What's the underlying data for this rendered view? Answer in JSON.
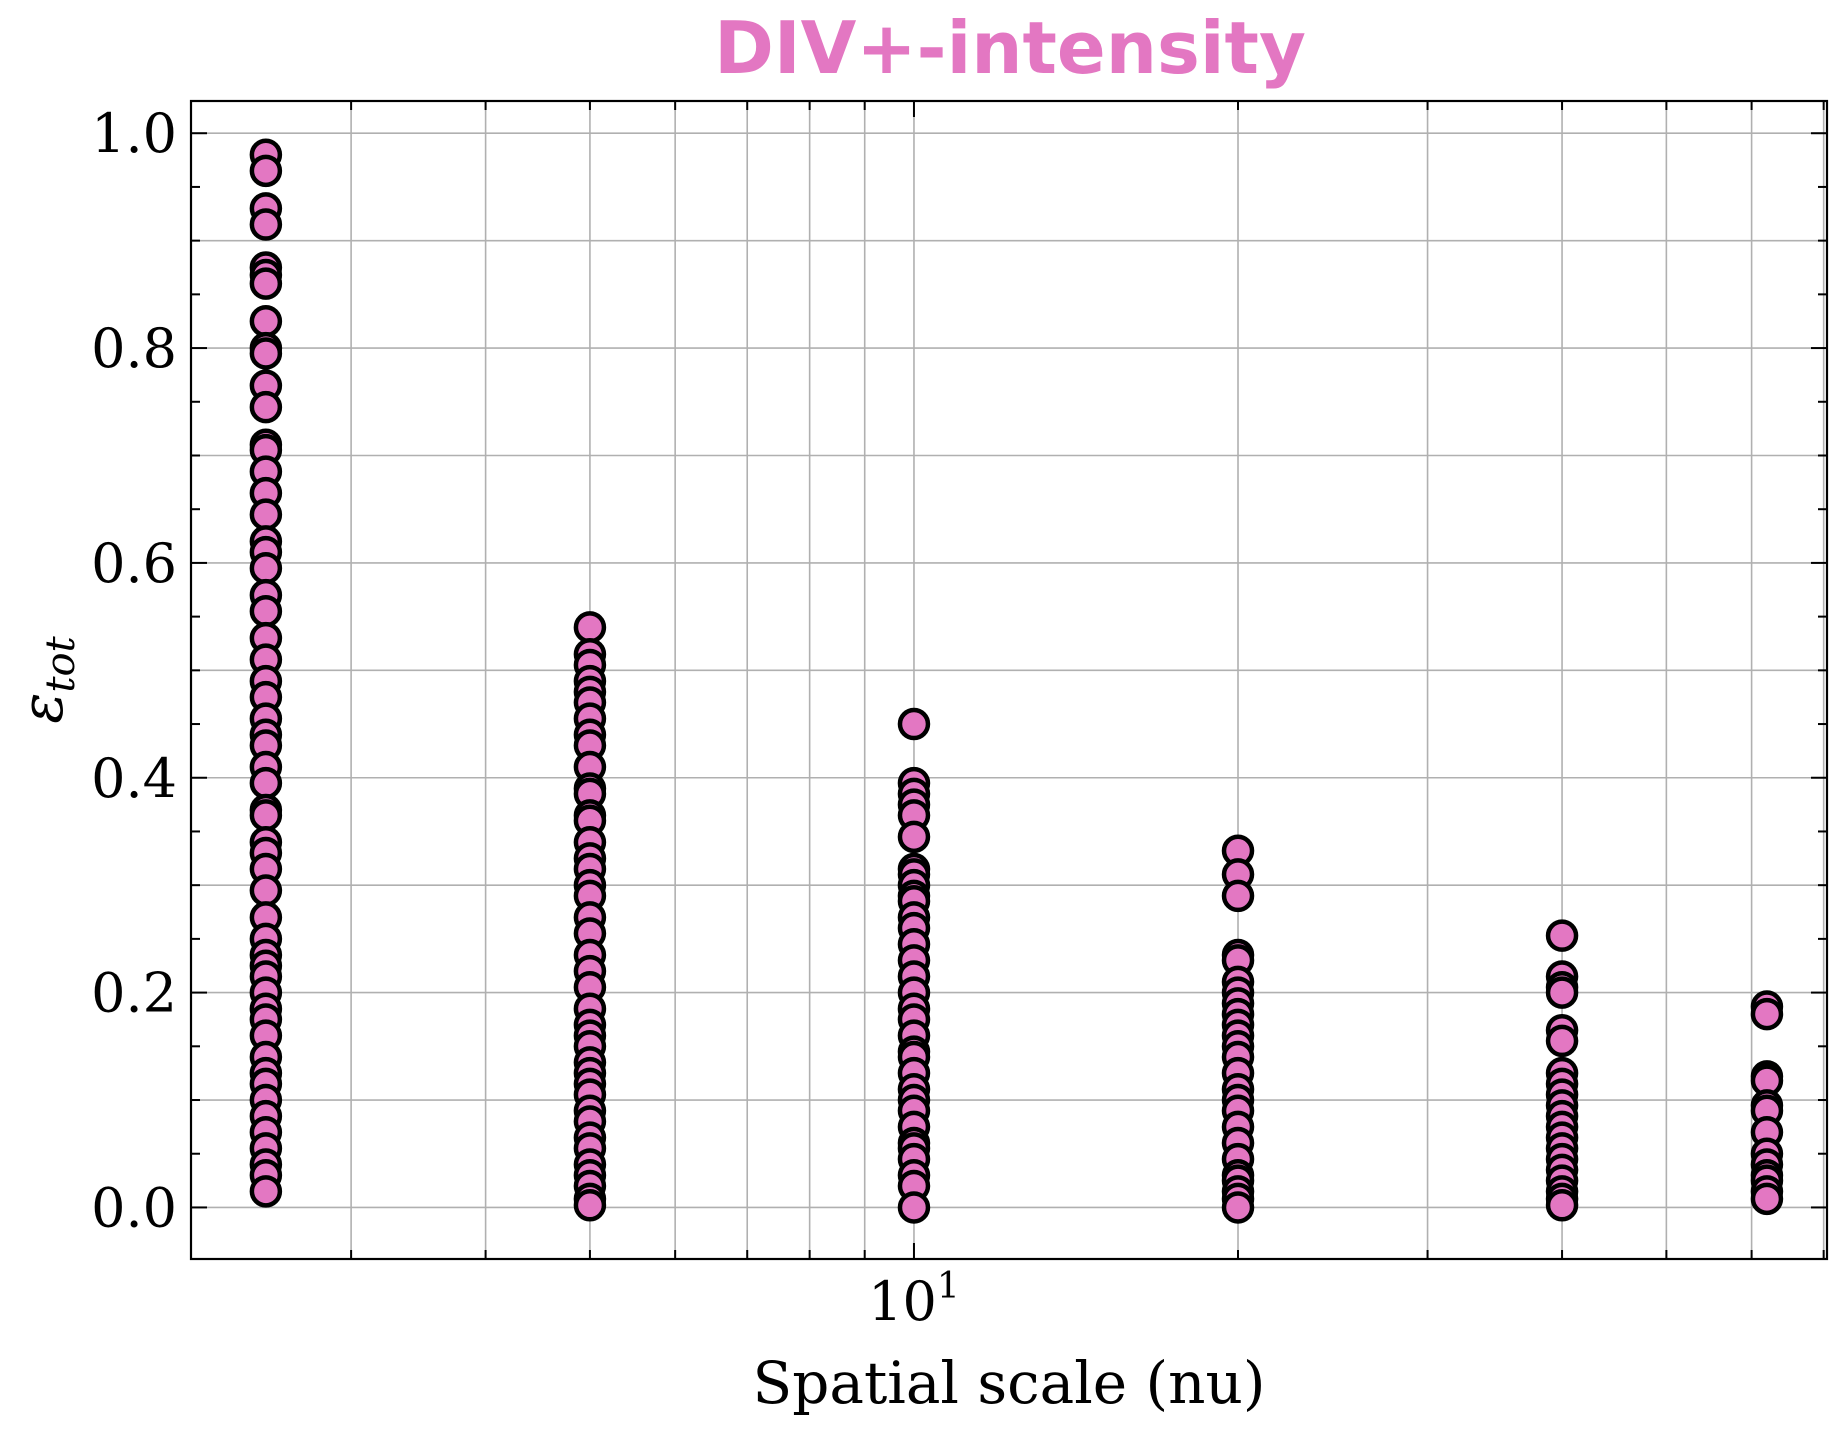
{
  "chart_data": {
    "type": "scatter",
    "title": "DIV+-intensity",
    "title_color": "#e377c2",
    "xlabel": "Spatial scale (nu)",
    "ylabel": "ε",
    "ylabel_sub": "tot",
    "x_scale": "log",
    "xlim": [
      2.13,
      70.5
    ],
    "ylim": [
      -0.048,
      1.03
    ],
    "x_major_ticks": [
      {
        "value": 10,
        "base": "10",
        "exp": "1"
      }
    ],
    "y_ticks": [
      {
        "value": 0.0,
        "label": "0.0"
      },
      {
        "value": 0.2,
        "label": "0.2"
      },
      {
        "value": 0.4,
        "label": "0.4"
      },
      {
        "value": 0.6,
        "label": "0.6"
      },
      {
        "value": 0.8,
        "label": "0.8"
      },
      {
        "value": 1.0,
        "label": "1.0"
      }
    ],
    "grid": true,
    "marker_color": "#e377c2",
    "marker_edge": "#000000",
    "series": [
      {
        "x": 2.5,
        "y": [
          0.98,
          0.965,
          0.93,
          0.915,
          0.875,
          0.868,
          0.86,
          0.825,
          0.8,
          0.795,
          0.765,
          0.745,
          0.71,
          0.705,
          0.685,
          0.665,
          0.645,
          0.62,
          0.61,
          0.595,
          0.57,
          0.555,
          0.53,
          0.51,
          0.49,
          0.475,
          0.455,
          0.44,
          0.43,
          0.41,
          0.395,
          0.37,
          0.365,
          0.34,
          0.33,
          0.315,
          0.295,
          0.27,
          0.25,
          0.235,
          0.225,
          0.215,
          0.2,
          0.185,
          0.175,
          0.16,
          0.14,
          0.125,
          0.115,
          0.1,
          0.085,
          0.07,
          0.055,
          0.04,
          0.03,
          0.015
        ]
      },
      {
        "x": 5.0,
        "y": [
          0.54,
          0.515,
          0.505,
          0.49,
          0.48,
          0.47,
          0.455,
          0.44,
          0.43,
          0.41,
          0.39,
          0.385,
          0.365,
          0.36,
          0.34,
          0.325,
          0.315,
          0.3,
          0.29,
          0.27,
          0.255,
          0.235,
          0.22,
          0.205,
          0.185,
          0.17,
          0.16,
          0.15,
          0.135,
          0.125,
          0.115,
          0.105,
          0.09,
          0.08,
          0.065,
          0.055,
          0.04,
          0.03,
          0.02,
          0.008,
          0.002
        ]
      },
      {
        "x": 10.0,
        "y": [
          0.45,
          0.395,
          0.385,
          0.375,
          0.365,
          0.345,
          0.315,
          0.31,
          0.3,
          0.29,
          0.285,
          0.27,
          0.26,
          0.245,
          0.23,
          0.215,
          0.2,
          0.185,
          0.175,
          0.16,
          0.145,
          0.14,
          0.125,
          0.11,
          0.1,
          0.09,
          0.075,
          0.06,
          0.055,
          0.045,
          0.03,
          0.02,
          0.0
        ]
      },
      {
        "x": 20.0,
        "y": [
          0.332,
          0.31,
          0.29,
          0.235,
          0.23,
          0.21,
          0.2,
          0.19,
          0.18,
          0.17,
          0.16,
          0.15,
          0.14,
          0.125,
          0.11,
          0.1,
          0.09,
          0.075,
          0.06,
          0.045,
          0.03,
          0.025,
          0.015,
          0.008,
          0.0
        ]
      },
      {
        "x": 40.0,
        "y": [
          0.253,
          0.215,
          0.205,
          0.2,
          0.165,
          0.155,
          0.125,
          0.115,
          0.105,
          0.095,
          0.085,
          0.075,
          0.065,
          0.055,
          0.045,
          0.035,
          0.025,
          0.015,
          0.008,
          0.002
        ]
      },
      {
        "x": 62.0,
        "y": [
          0.187,
          0.18,
          0.122,
          0.118,
          0.095,
          0.09,
          0.07,
          0.05,
          0.04,
          0.03,
          0.025,
          0.015,
          0.008
        ]
      }
    ]
  }
}
